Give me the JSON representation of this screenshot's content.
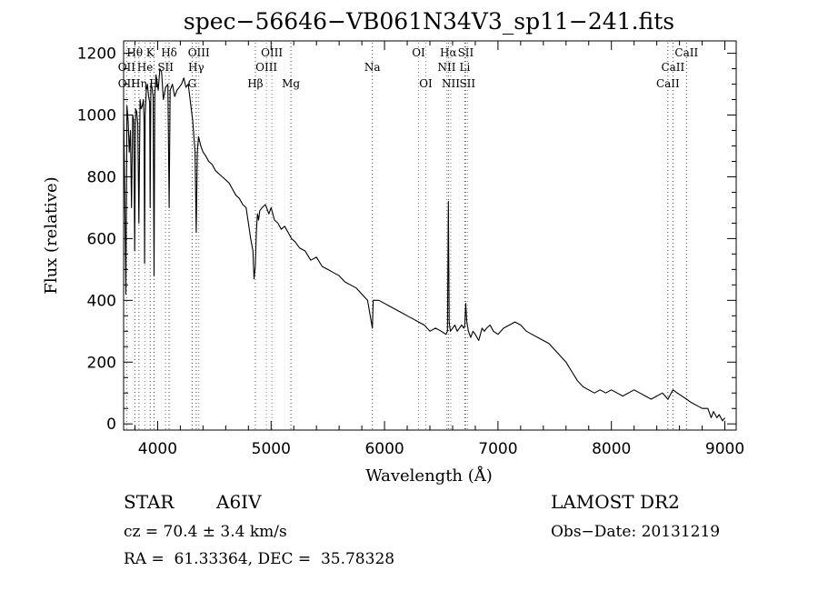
{
  "chart_data": {
    "type": "line",
    "title": "spec−56646−VB061N34V3_sp11−241.fits",
    "xlabel": "Wavelength (Å)",
    "ylabel": "Flux (relative)",
    "xlim": [
      3700,
      9100
    ],
    "ylim": [
      -20,
      1240
    ],
    "x_ticks": [
      4000,
      5000,
      6000,
      7000,
      8000,
      9000
    ],
    "y_ticks": [
      0,
      200,
      400,
      600,
      800,
      1000,
      1200
    ],
    "grid": false,
    "series": [
      {
        "color": "#000000",
        "x": [
          3700,
          3710,
          3720,
          3730,
          3740,
          3750,
          3760,
          3770,
          3780,
          3790,
          3798,
          3806,
          3815,
          3825,
          3835,
          3845,
          3855,
          3865,
          3875,
          3880,
          3885,
          3890,
          3900,
          3910,
          3920,
          3930,
          3934,
          3940,
          3950,
          3960,
          3968,
          3975,
          3985,
          3995,
          4005,
          4020,
          4035,
          4050,
          4070,
          4090,
          4101,
          4110,
          4130,
          4150,
          4170,
          4190,
          4210,
          4230,
          4250,
          4270,
          4290,
          4310,
          4330,
          4340,
          4350,
          4360,
          4380,
          4400,
          4420,
          4450,
          4480,
          4510,
          4540,
          4570,
          4600,
          4630,
          4660,
          4690,
          4720,
          4750,
          4780,
          4800,
          4820,
          4840,
          4850,
          4861,
          4870,
          4880,
          4890,
          4900,
          4920,
          4950,
          4980,
          5000,
          5030,
          5060,
          5090,
          5120,
          5150,
          5180,
          5210,
          5250,
          5300,
          5350,
          5400,
          5450,
          5500,
          5550,
          5600,
          5650,
          5700,
          5750,
          5800,
          5850,
          5893,
          5900,
          5950,
          6000,
          6050,
          6100,
          6150,
          6200,
          6250,
          6300,
          6350,
          6400,
          6450,
          6500,
          6540,
          6555,
          6563,
          6570,
          6580,
          6600,
          6620,
          6640,
          6660,
          6680,
          6700,
          6708,
          6716,
          6725,
          6740,
          6760,
          6780,
          6800,
          6830,
          6860,
          6880,
          6900,
          6930,
          6960,
          7000,
          7050,
          7100,
          7150,
          7200,
          7250,
          7300,
          7350,
          7400,
          7450,
          7500,
          7550,
          7600,
          7650,
          7700,
          7750,
          7800,
          7850,
          7900,
          7950,
          8000,
          8050,
          8100,
          8150,
          8200,
          8250,
          8300,
          8350,
          8400,
          8450,
          8498,
          8542,
          8580,
          8620,
          8662,
          8700,
          8750,
          8800,
          8850,
          8880,
          8900,
          8930,
          8950,
          8980,
          9000
        ],
        "y": [
          1000,
          760,
          420,
          1030,
          980,
          880,
          950,
          700,
          1000,
          980,
          560,
          1020,
          1010,
          970,
          650,
          1050,
          1020,
          1030,
          1050,
          980,
          520,
          1000,
          1080,
          1100,
          1060,
          1040,
          700,
          1100,
          1090,
          1060,
          480,
          1060,
          1130,
          1110,
          1080,
          1150,
          1140,
          1050,
          1090,
          1100,
          700,
          1080,
          1100,
          1060,
          1080,
          1090,
          1100,
          1120,
          1090,
          1100,
          1040,
          980,
          880,
          620,
          880,
          930,
          900,
          880,
          870,
          850,
          840,
          820,
          810,
          800,
          790,
          780,
          760,
          740,
          730,
          710,
          700,
          650,
          600,
          560,
          470,
          510,
          620,
          680,
          660,
          690,
          700,
          710,
          680,
          700,
          660,
          650,
          630,
          640,
          620,
          600,
          590,
          570,
          560,
          530,
          540,
          510,
          500,
          490,
          480,
          460,
          450,
          440,
          420,
          400,
          310,
          400,
          400,
          390,
          380,
          370,
          360,
          350,
          340,
          330,
          320,
          300,
          310,
          300,
          290,
          300,
          720,
          330,
          300,
          310,
          320,
          300,
          310,
          320,
          310,
          320,
          390,
          330,
          300,
          280,
          300,
          290,
          270,
          310,
          300,
          310,
          320,
          300,
          290,
          310,
          320,
          330,
          320,
          300,
          290,
          280,
          270,
          260,
          240,
          220,
          200,
          170,
          140,
          120,
          110,
          100,
          110,
          100,
          110,
          100,
          90,
          100,
          110,
          100,
          90,
          80,
          90,
          100,
          80,
          110,
          100,
          90,
          80,
          70,
          60,
          50,
          50,
          20,
          40,
          20,
          30,
          10,
          20
        ],
        "mark_every": 1
      }
    ],
    "spectral_lines": [
      {
        "label": "Hθ",
        "x": 3798,
        "row": 1,
        "color": "#c01010"
      },
      {
        "label": "Hη",
        "x": 3835,
        "row": 3,
        "color": "#c01010"
      },
      {
        "label": "OII",
        "x": 3727,
        "row": 2,
        "color": "#808080"
      },
      {
        "label": "OII",
        "x": 3727,
        "row": 3,
        "color": "#808080"
      },
      {
        "label": "He",
        "x": 3889,
        "row": 2,
        "color": "#808080"
      },
      {
        "label": "K",
        "x": 3934,
        "row": 1,
        "color": "#c01010"
      },
      {
        "label": "H",
        "x": 3968,
        "row": 3,
        "color": "#c01010"
      },
      {
        "label": "SII",
        "x": 4070,
        "row": 2,
        "color": "#808080"
      },
      {
        "label": "Hδ",
        "x": 4101,
        "row": 1,
        "color": "#c01010"
      },
      {
        "label": "OIII",
        "x": 4363,
        "row": 1,
        "color": "#808080"
      },
      {
        "label": "Hγ",
        "x": 4340,
        "row": 2,
        "color": "#c01010"
      },
      {
        "label": "G",
        "x": 4304,
        "row": 3,
        "color": "#c01010"
      },
      {
        "label": "Hβ",
        "x": 4861,
        "row": 3,
        "color": "#c01010"
      },
      {
        "label": "OIII",
        "x": 5007,
        "row": 1,
        "color": "#808080"
      },
      {
        "label": "OIII",
        "x": 4959,
        "row": 2,
        "color": "#808080"
      },
      {
        "label": "Mg",
        "x": 5175,
        "row": 3,
        "color": "#c01010"
      },
      {
        "label": "Na",
        "x": 5893,
        "row": 2,
        "color": "#c01010"
      },
      {
        "label": "OI",
        "x": 6300,
        "row": 1,
        "color": "#808080"
      },
      {
        "label": "OI",
        "x": 6364,
        "row": 3,
        "color": "#808080"
      },
      {
        "label": "Hα",
        "x": 6563,
        "row": 1,
        "color": "#c01010"
      },
      {
        "label": "NII",
        "x": 6548,
        "row": 2,
        "color": "#808080"
      },
      {
        "label": "NII",
        "x": 6584,
        "row": 3,
        "color": "#808080"
      },
      {
        "label": "SII",
        "x": 6716,
        "row": 1,
        "color": "#808080"
      },
      {
        "label": "Li",
        "x": 6708,
        "row": 2,
        "color": "#c01010"
      },
      {
        "label": "SII",
        "x": 6731,
        "row": 3,
        "color": "#808080"
      },
      {
        "label": "CaII",
        "x": 8662,
        "row": 1,
        "color": "#c01010"
      },
      {
        "label": "CaII",
        "x": 8542,
        "row": 2,
        "color": "#c01010"
      },
      {
        "label": "CaII",
        "x": 8498,
        "row": 3,
        "color": "#c01010"
      }
    ]
  },
  "info": {
    "object_class": "STAR",
    "subclass": "A6IV",
    "survey": "LAMOST DR2",
    "cz": "cz = 70.4 ± 3.4 km/s",
    "obs_date": "Obs−Date: 20131219",
    "coords": "RA =  61.33364, DEC =  35.78328"
  }
}
